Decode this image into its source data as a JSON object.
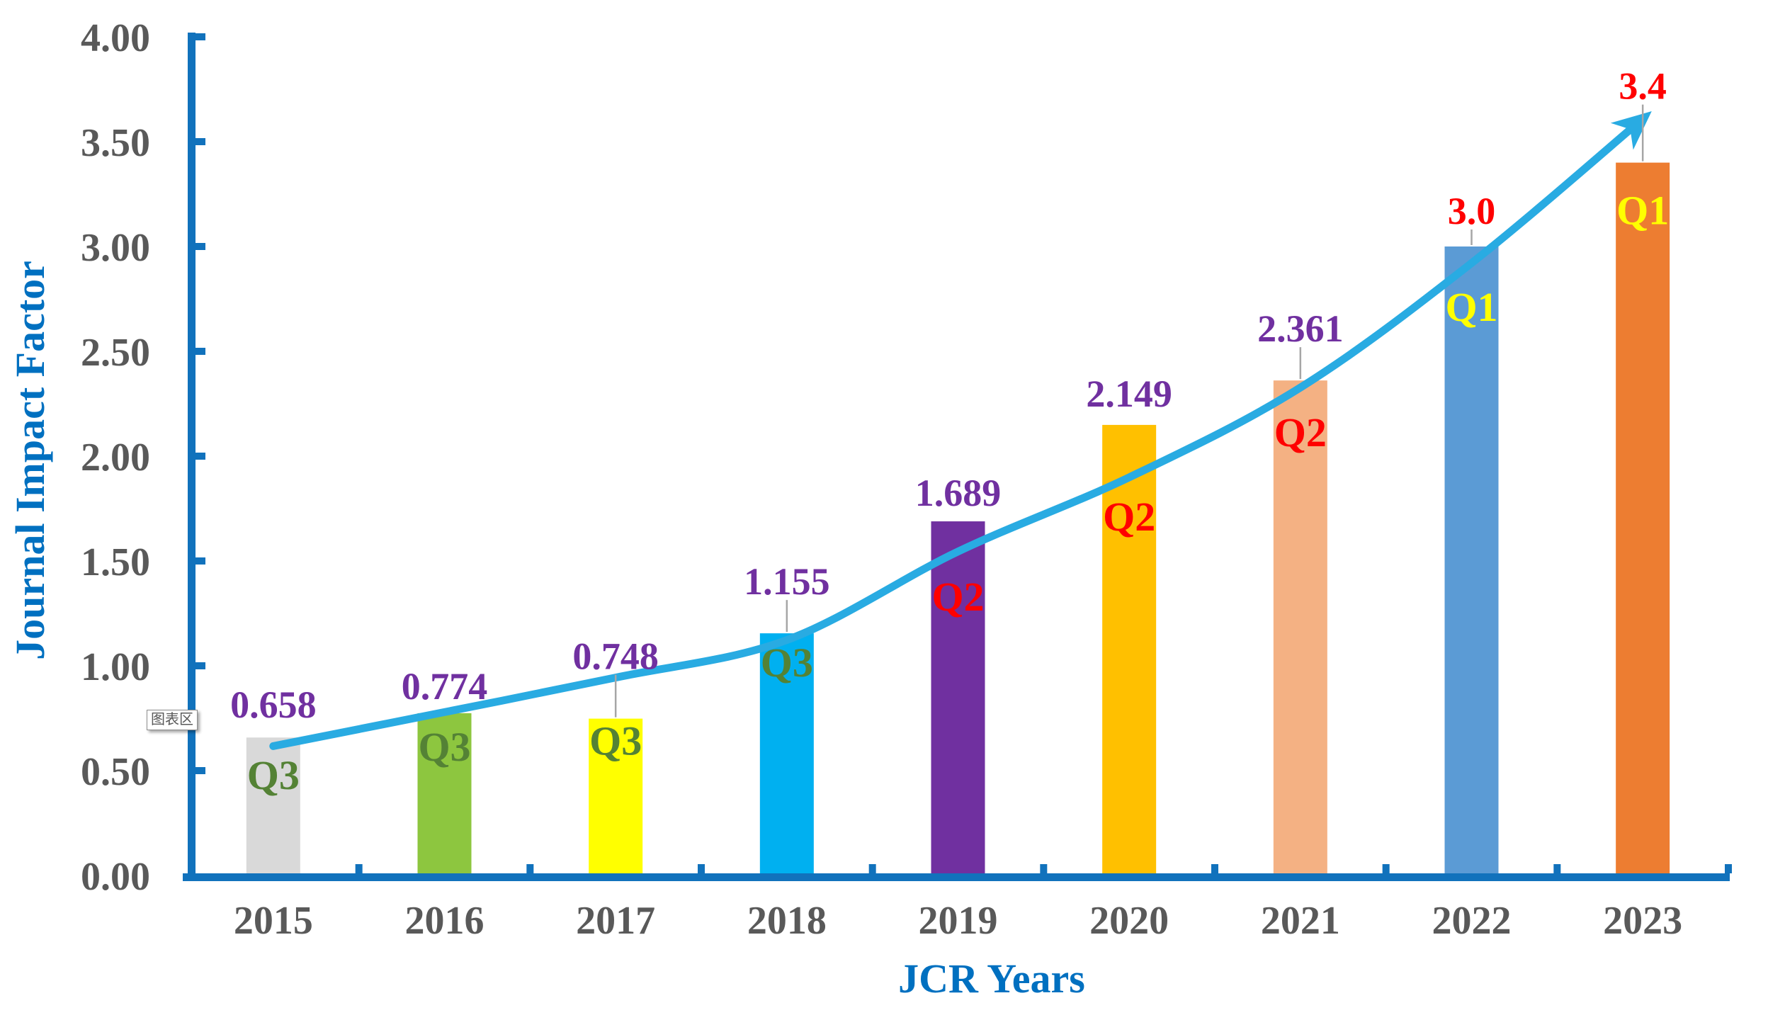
{
  "tooltip": {
    "text": "图表区"
  },
  "chart_data": {
    "type": "bar",
    "title": "",
    "xlabel": "JCR Years",
    "ylabel": "Journal Impact Factor",
    "categories": [
      "2015",
      "2016",
      "2017",
      "2018",
      "2019",
      "2020",
      "2021",
      "2022",
      "2023"
    ],
    "values": [
      0.658,
      0.774,
      0.748,
      1.155,
      1.689,
      2.149,
      2.361,
      3.0,
      3.4
    ],
    "value_labels": [
      "0.658",
      "0.774",
      "0.748",
      "1.155",
      "1.689",
      "2.149",
      "2.361",
      "3.0",
      "3.4"
    ],
    "value_label_colors": [
      "#7030A0",
      "#7030A0",
      "#7030A0",
      "#7030A0",
      "#7030A0",
      "#7030A0",
      "#7030A0",
      "#FF0000",
      "#FF0000"
    ],
    "quartiles": [
      "Q3",
      "Q3",
      "Q3",
      "Q3",
      "Q2",
      "Q2",
      "Q2",
      "Q1",
      "Q1"
    ],
    "quartile_colors": [
      "#548235",
      "#548235",
      "#548235",
      "#548235",
      "#FF0000",
      "#FF0000",
      "#FF0000",
      "#FFFF00",
      "#FFFF00"
    ],
    "bar_colors": [
      "#D9D9D9",
      "#8DC63F",
      "#FFFF00",
      "#00B0F0",
      "#7030A0",
      "#FFC000",
      "#F4B183",
      "#5B9BD5",
      "#ED7D31"
    ],
    "ylim": [
      0,
      4
    ],
    "ytick_labels": [
      "0.00",
      "0.50",
      "1.00",
      "1.50",
      "2.00",
      "2.50",
      "3.00",
      "3.50",
      "4.00"
    ],
    "grid": false,
    "legend": false,
    "axis_color": "#1172BC",
    "tick_label_color": "#595959",
    "axis_title_color": "#0070C0",
    "leader_line_color": "#A6A6A6",
    "trendline": {
      "type": "exponential",
      "color": "#29ABE2",
      "arrow": true,
      "fitted_values": [
        0.617,
        0.779,
        0.944,
        1.123,
        1.545,
        1.899,
        2.327,
        2.921,
        3.609
      ]
    },
    "label_layout": {
      "label_gaps": [
        28,
        20,
        70,
        55,
        22,
        26,
        55,
        32,
        90
      ],
      "leaders": [
        false,
        false,
        true,
        true,
        false,
        false,
        true,
        true,
        true
      ],
      "q_offsets": [
        52,
        46,
        30,
        40,
        105,
        128,
        72,
        84,
        66
      ]
    }
  }
}
